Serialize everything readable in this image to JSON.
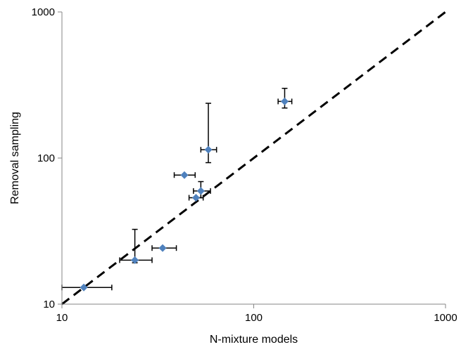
{
  "chart_data": {
    "type": "scatter",
    "xlabel": "N-mixture models",
    "ylabel": "Removal sampling",
    "xscale": "log",
    "yscale": "log",
    "xlim": [
      10,
      1000
    ],
    "ylim": [
      10,
      1000
    ],
    "xticks": [
      10,
      100,
      1000
    ],
    "yticks": [
      10,
      100,
      1000
    ],
    "xtick_labels": [
      "10",
      "100",
      "1000"
    ],
    "ytick_labels": [
      "10",
      "100",
      "1000"
    ],
    "grid": false,
    "legend": "none",
    "reference_line": {
      "style": "dashed",
      "from": [
        10,
        10
      ],
      "to": [
        1000,
        1000
      ],
      "color": "#000000"
    },
    "marker": {
      "shape": "diamond",
      "color": "#4F81BD"
    },
    "points": [
      {
        "x": 13,
        "y": 13,
        "x_err": [
          10,
          18.2
        ],
        "y_err": null
      },
      {
        "x": 24,
        "y": 20,
        "x_err": [
          20,
          29.5
        ],
        "y_err": [
          19.2,
          32.5
        ]
      },
      {
        "x": 33.5,
        "y": 24.2,
        "x_err": [
          29.5,
          39.5
        ],
        "y_err": null
      },
      {
        "x": 43.5,
        "y": 76.5,
        "x_err": [
          38.5,
          49.5
        ],
        "y_err": null
      },
      {
        "x": 50,
        "y": 53.5,
        "x_err": [
          46,
          54.5
        ],
        "y_err": null
      },
      {
        "x": 53,
        "y": 59.5,
        "x_err": [
          48.5,
          59.5
        ],
        "y_err": [
          53.5,
          69
        ]
      },
      {
        "x": 58,
        "y": 114,
        "x_err": [
          53,
          64
        ],
        "y_err": [
          93,
          237
        ]
      },
      {
        "x": 145,
        "y": 244,
        "x_err": [
          134,
          158
        ],
        "y_err": [
          220,
          300
        ]
      }
    ]
  }
}
